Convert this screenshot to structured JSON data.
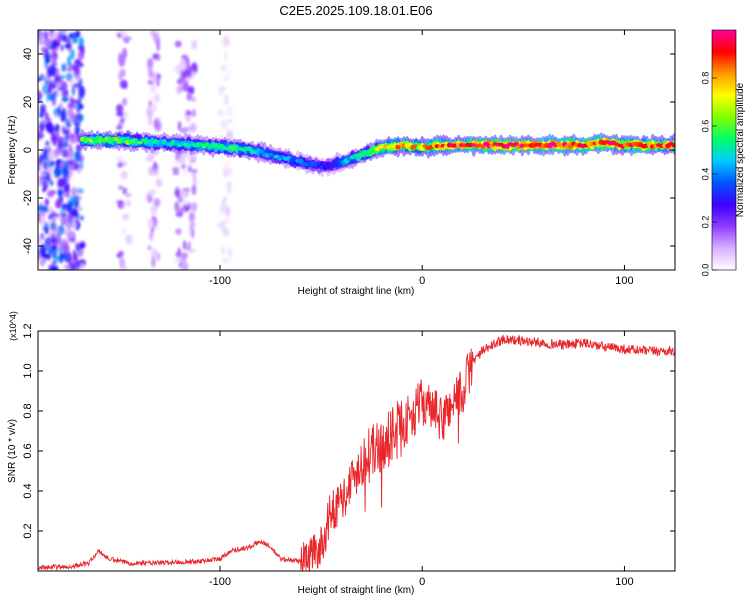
{
  "figure": {
    "title": "C2E5.2025.109.18.01.E06"
  },
  "chart_data": [
    {
      "type": "heatmap",
      "title": "C2E5.2025.109.18.01.E06",
      "xlabel": "Height of straight line (km)",
      "ylabel": "Frequency (Hz)",
      "xlim": [
        -190,
        125
      ],
      "ylim": [
        -50,
        50
      ],
      "x_ticks": [
        -100,
        0,
        100
      ],
      "x_tick_labels": [
        "-100",
        "0",
        "100"
      ],
      "y_ticks": [
        -40,
        -20,
        0,
        20,
        40
      ],
      "y_tick_labels": [
        "-40",
        "-20",
        "0",
        "20",
        "40"
      ],
      "colorbar": {
        "label": "Normalized spectral amplitude",
        "range": [
          0,
          1
        ],
        "ticks": [
          0,
          0.2,
          0.4,
          0.6,
          0.8
        ],
        "tick_labels": [
          "0.0",
          "0.2",
          "0.4",
          "0.6",
          "0.8"
        ],
        "colors": [
          "#ffffff",
          "#d9b0ff",
          "#8f3cff",
          "#3c00ff",
          "#0055ff",
          "#00ccff",
          "#00ff66",
          "#80ff00",
          "#ffff00",
          "#ff9900",
          "#ff0000",
          "#ff0099"
        ]
      },
      "ridge": {
        "x": [
          -168,
          -150,
          -130,
          -110,
          -95,
          -85,
          -75,
          -65,
          -55,
          -48,
          -40,
          -30,
          -20,
          -10,
          0,
          10,
          20,
          40,
          60,
          80,
          90,
          100,
          125
        ],
        "frequency": [
          4,
          4,
          3,
          2,
          1,
          0,
          -2,
          -4,
          -6,
          -7,
          -5,
          -2,
          1,
          2,
          1,
          2,
          2,
          2,
          2,
          2,
          3,
          2,
          2
        ],
        "amplitude": [
          0.6,
          0.6,
          0.5,
          0.5,
          0.55,
          0.5,
          0.45,
          0.4,
          0.35,
          0.3,
          0.4,
          0.55,
          0.7,
          0.8,
          0.75,
          0.85,
          0.9,
          0.95,
          0.95,
          0.9,
          0.9,
          0.85,
          0.85
        ]
      },
      "noise_bands": [
        {
          "x_range": [
            -190,
            -168
          ],
          "amplitude": 0.3
        },
        {
          "x_range": [
            -150,
            -145
          ],
          "amplitude": 0.15
        },
        {
          "x_range": [
            -135,
            -130
          ],
          "amplitude": 0.12
        },
        {
          "x_range": [
            -122,
            -112
          ],
          "amplitude": 0.15
        },
        {
          "x_range": [
            -100,
            -95
          ],
          "amplitude": 0.05
        }
      ]
    },
    {
      "type": "line",
      "xlabel": "Height of straight line (km)",
      "ylabel": "SNR (10 * v/v)",
      "y_multiplier": "(x10^4)",
      "xlim": [
        -190,
        125
      ],
      "ylim": [
        0,
        1.2
      ],
      "x_ticks": [
        -100,
        0,
        100
      ],
      "x_tick_labels": [
        "-100",
        "0",
        "100"
      ],
      "y_ticks": [
        0.2,
        0.4,
        0.6,
        0.8,
        1.0,
        1.2
      ],
      "y_tick_labels": [
        "0.2",
        "0.4",
        "0.6",
        "0.8",
        "1.0",
        "1.2"
      ],
      "series": [
        {
          "color": "#e8262b",
          "x": [
            -190,
            -175,
            -165,
            -160,
            -155,
            -145,
            -130,
            -110,
            -100,
            -95,
            -85,
            -80,
            -75,
            -70,
            -60,
            -50,
            -45,
            -40,
            -35,
            -30,
            -25,
            -20,
            -15,
            -10,
            -5,
            0,
            5,
            10,
            15,
            20,
            25,
            30,
            40,
            50,
            60,
            70,
            80,
            90,
            100,
            110,
            125
          ],
          "y": [
            0.02,
            0.02,
            0.04,
            0.1,
            0.06,
            0.04,
            0.04,
            0.05,
            0.06,
            0.1,
            0.12,
            0.15,
            0.12,
            0.06,
            0.05,
            0.12,
            0.3,
            0.35,
            0.45,
            0.55,
            0.6,
            0.62,
            0.68,
            0.72,
            0.78,
            0.85,
            0.8,
            0.75,
            0.85,
            0.9,
            1.05,
            1.1,
            1.16,
            1.15,
            1.14,
            1.13,
            1.14,
            1.12,
            1.11,
            1.1,
            1.1
          ]
        }
      ]
    }
  ]
}
